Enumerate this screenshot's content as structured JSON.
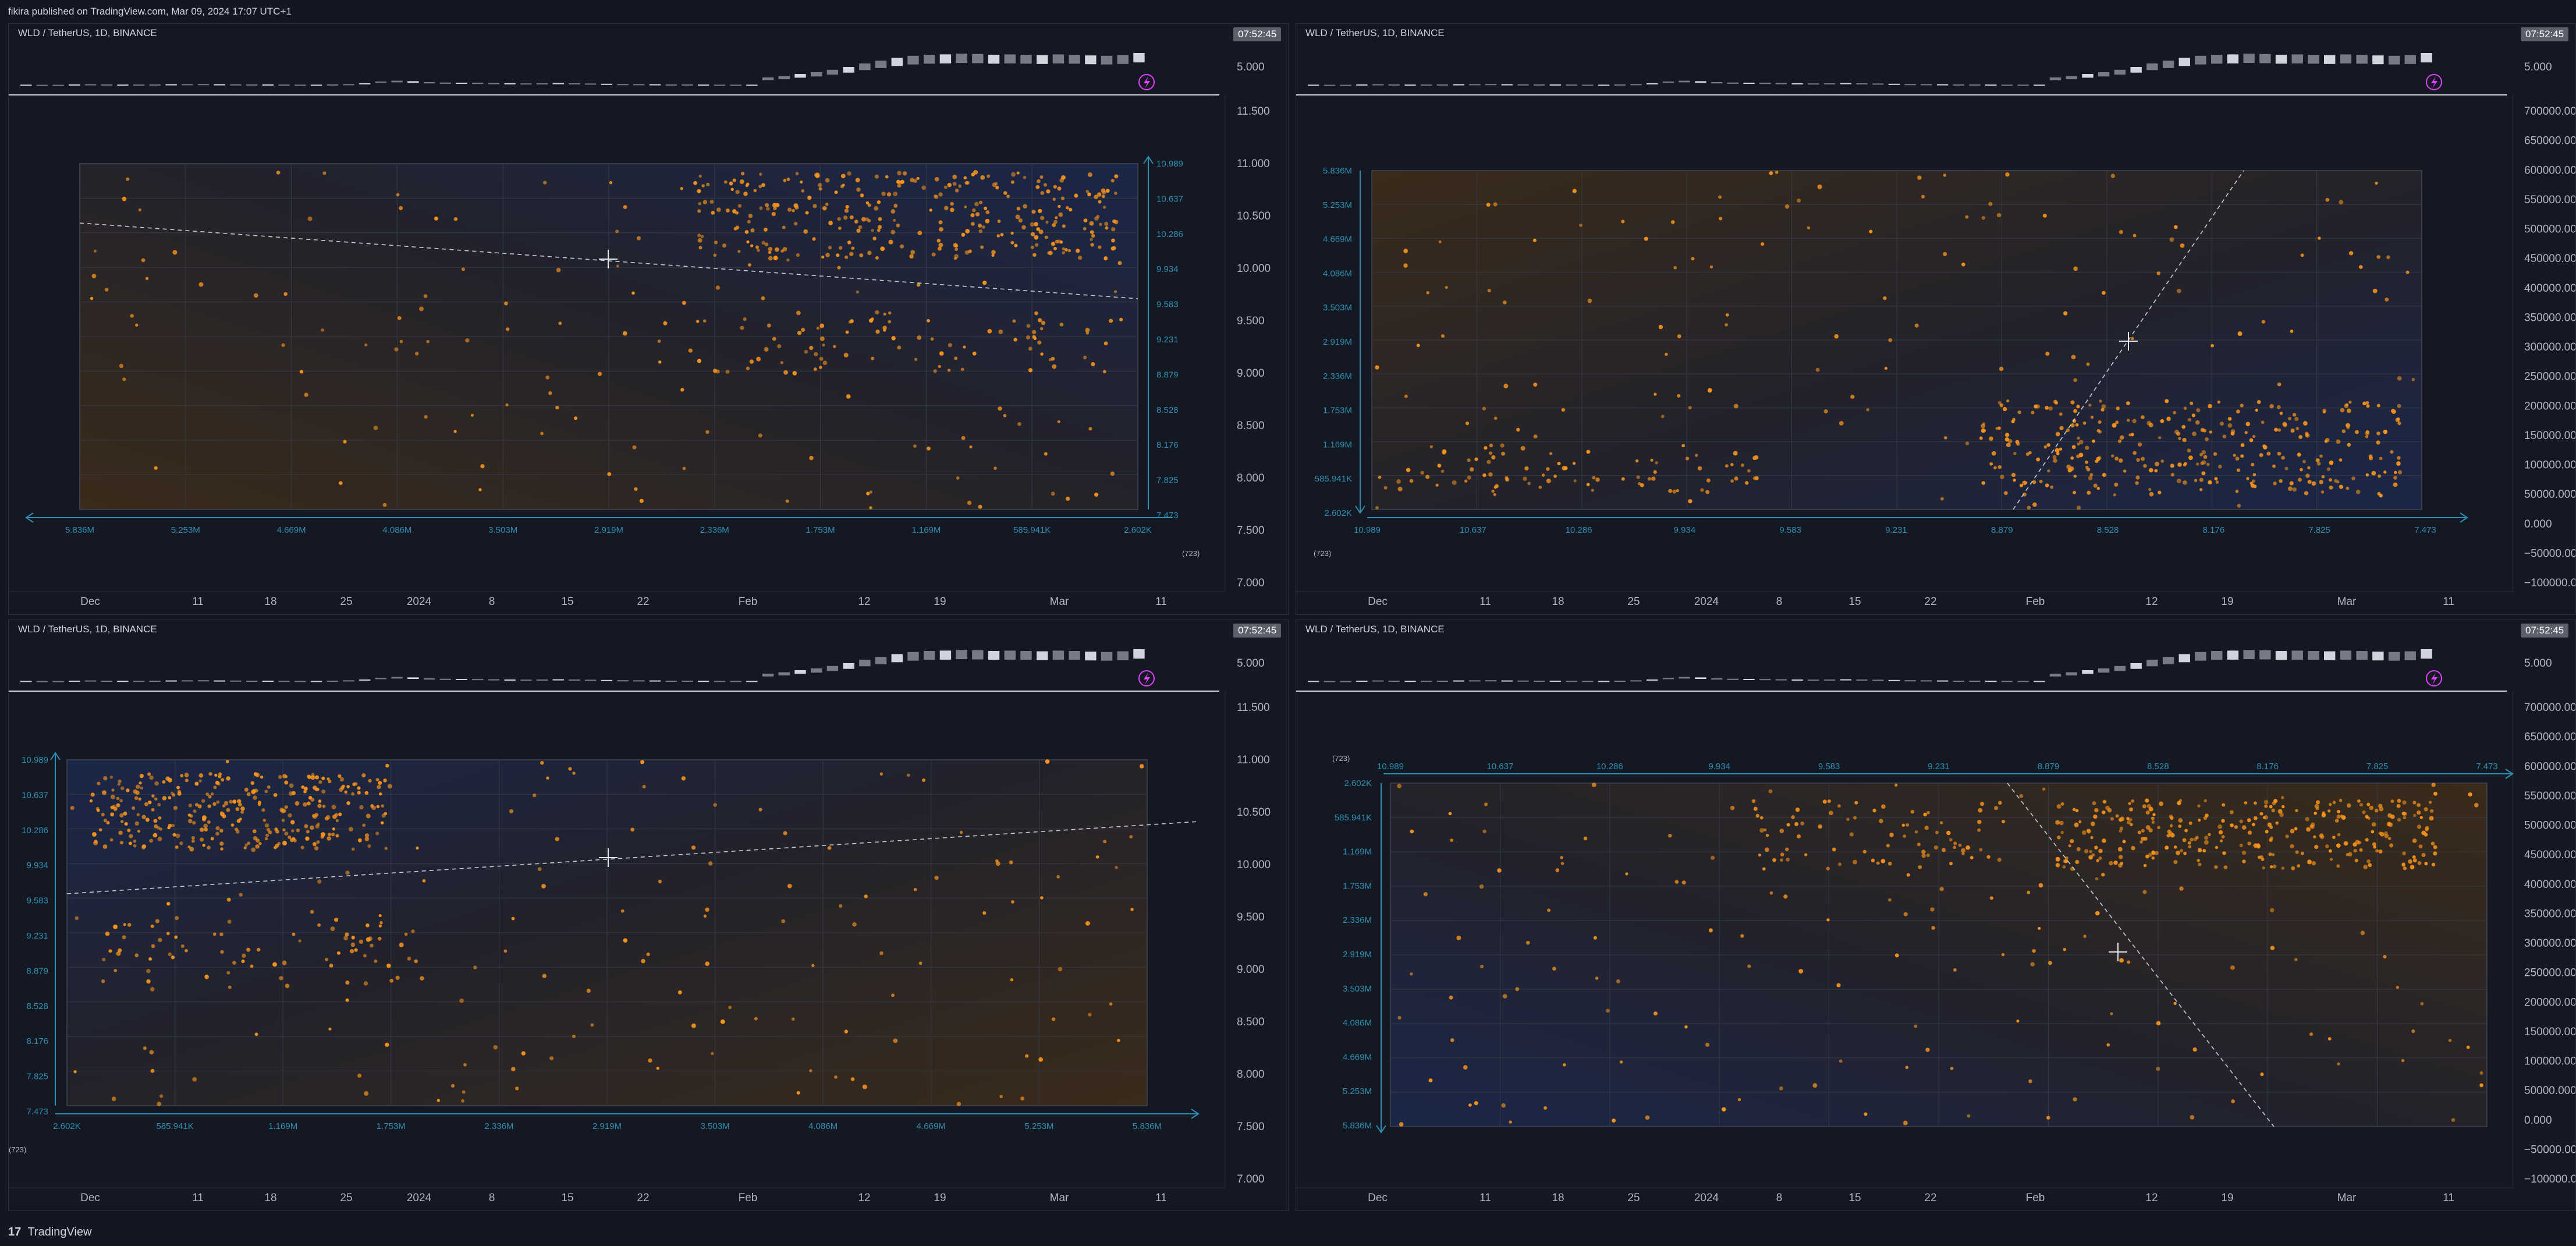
{
  "publisher_line": "fikira published on TradingView.com, Mar 09, 2024 17:07 UTC+1",
  "footer": {
    "logo_glyph": "17",
    "brand": "TradingView"
  },
  "panel_header": "WLD / TetherUS, 1D, BINANCE",
  "clock": "07:52:45",
  "mini_price_label": "5.000",
  "lightning_icon": "lightning-icon",
  "price_ticks": [
    "11.500",
    "11.000",
    "10.500",
    "10.000",
    "9.500",
    "9.000",
    "8.500",
    "8.000",
    "7.500",
    "7.000"
  ],
  "volume_ticks": [
    "700000.000",
    "650000.000",
    "600000.000",
    "550000.000",
    "500000.000",
    "450000.000",
    "400000.000",
    "350000.000",
    "300000.000",
    "250000.000",
    "200000.000",
    "150000.000",
    "100000.000",
    "50000.000",
    "0.000",
    "−50000.000",
    "−100000.000"
  ],
  "time_ticks": [
    "Dec",
    "11",
    "18",
    "25",
    "2024",
    "8",
    "15",
    "22",
    "Feb",
    "12",
    "19",
    "Mar",
    "11"
  ],
  "price_levels": [
    "10.989",
    "10.637",
    "10.286",
    "9.934",
    "9.583",
    "9.231",
    "8.879",
    "8.528",
    "8.176",
    "7.825",
    "7.473"
  ],
  "volume_levels": [
    "5.836M",
    "5.253M",
    "4.669M",
    "4.086M",
    "3.503M",
    "2.919M",
    "2.336M",
    "1.753M",
    "1.169M",
    "585.941K",
    "2.602K"
  ],
  "count_label": "(723)",
  "colors": {
    "bg": "#131722",
    "panel": "#141823",
    "grid": "#363a45",
    "accent": "#2e8fb0",
    "dots": "#f7931a",
    "dashed": "#c9cbd1",
    "text": "#b2b5be",
    "clock_bg": "#5d606b",
    "lightning": "#e040fb"
  },
  "chart_data": [
    {
      "type": "scatter",
      "title": "",
      "x_axis_values": [
        "5.836M",
        "5.253M",
        "4.669M",
        "4.086M",
        "3.503M",
        "2.919M",
        "2.336M",
        "1.753M",
        "1.169M",
        "585.941K",
        "2.602K"
      ],
      "y_axis_values": [
        "10.989",
        "10.637",
        "10.286",
        "9.934",
        "9.583",
        "9.231",
        "8.879",
        "8.528",
        "8.176",
        "7.825",
        "7.473"
      ],
      "points": 723,
      "regression": "descending dashed line"
    },
    {
      "type": "scatter",
      "title": "",
      "x_axis_values": [
        "7.473",
        "7.825",
        "8.176",
        "8.528",
        "8.879",
        "9.231",
        "9.583",
        "9.934",
        "10.286",
        "10.637",
        "10.989"
      ],
      "y_axis_values": [
        "5.836M",
        "5.253M",
        "4.669M",
        "4.086M",
        "3.503M",
        "2.919M",
        "2.336M",
        "1.753M",
        "1.169M",
        "585.941K",
        "2.602K"
      ],
      "points": 723,
      "regression": "steep ascending dashed line"
    },
    {
      "type": "scatter",
      "title": "",
      "x_axis_values": [
        "2.602K",
        "585.941K",
        "1.169M",
        "1.753M",
        "2.336M",
        "2.919M",
        "3.503M",
        "4.086M",
        "4.669M",
        "5.253M",
        "5.836M"
      ],
      "y_axis_values": [
        "10.989",
        "10.637",
        "10.286",
        "9.934",
        "9.583",
        "9.231",
        "8.879",
        "8.528",
        "8.176",
        "7.825",
        "7.473"
      ],
      "points": 723,
      "regression": "ascending dashed line"
    },
    {
      "type": "scatter",
      "title": "",
      "x_axis_values": [
        "7.473",
        "7.825",
        "8.176",
        "8.528",
        "8.879",
        "9.231",
        "9.583",
        "9.934",
        "10.286",
        "10.637",
        "10.989"
      ],
      "y_axis_values": [
        "2.602K",
        "585.941K",
        "1.169M",
        "1.753M",
        "2.336M",
        "2.919M",
        "3.503M",
        "4.086M",
        "4.669M",
        "5.253M",
        "5.836M"
      ],
      "points": 723,
      "regression": "steep descending dashed line"
    }
  ]
}
